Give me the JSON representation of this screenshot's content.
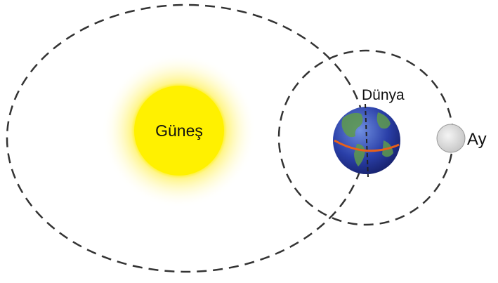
{
  "nodes": [
    {
      "label": "Güneş"
    },
    {
      "label": "Dünya"
    },
    {
      "label": "Ay"
    }
  ]
}
